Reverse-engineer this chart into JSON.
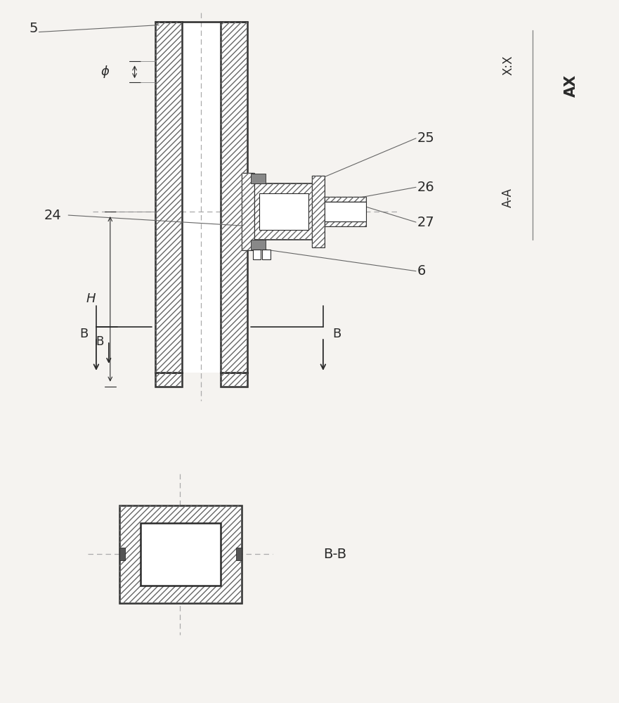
{
  "bg_color": "#f5f3f0",
  "line_color": "#2a2a2a",
  "hatch_color": "#444444",
  "title_AX": "AX",
  "title_XX": "X:X",
  "title_AA": "A-A",
  "title_BB": "B-B",
  "label_5": "5",
  "label_24": "24",
  "label_25": "25",
  "label_26": "26",
  "label_27": "27",
  "label_6": "6",
  "label_H": "H",
  "label_phi": "ϕ",
  "label_B": "B"
}
